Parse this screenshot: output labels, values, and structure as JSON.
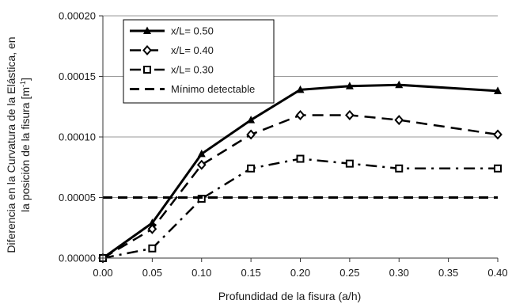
{
  "chart_data": {
    "type": "line",
    "title": "",
    "xlabel": "Profundidad de la fisura (a/h)",
    "ylabel_lines": [
      "Diferencia en la Curvatura de la Elástica, en",
      "la posición de la fisura [m"
    ],
    "ylabel_unit_sup": "-1",
    "ylabel_unit_close": "]",
    "x_ticks": [
      "0.00",
      "0.05",
      "0.10",
      "0.15",
      "0.20",
      "0.25",
      "0.30",
      "0.35",
      "0.40"
    ],
    "y_ticks": [
      "0.00000",
      "0.00005",
      "0.00010",
      "0.00015",
      "0.00020"
    ],
    "xlim": [
      0,
      0.4
    ],
    "ylim": [
      0,
      0.0002
    ],
    "grid": "horizontal",
    "legend_position": "top-left",
    "series": [
      {
        "name": "x/L= 0.50",
        "marker": "triangle",
        "line": "solid",
        "x": [
          0.0,
          0.05,
          0.1,
          0.15,
          0.2,
          0.25,
          0.3,
          0.4
        ],
        "values": [
          0.0,
          2.9e-05,
          8.6e-05,
          0.000114,
          0.000139,
          0.000142,
          0.000143,
          0.000138
        ]
      },
      {
        "name": "x/L= 0.40",
        "marker": "diamond",
        "line": "dashed",
        "x": [
          0.0,
          0.05,
          0.1,
          0.15,
          0.2,
          0.25,
          0.3,
          0.4
        ],
        "values": [
          0.0,
          2.4e-05,
          7.7e-05,
          0.000102,
          0.000118,
          0.000118,
          0.000114,
          0.000102
        ]
      },
      {
        "name": "x/L= 0.30",
        "marker": "square",
        "line": "dashdot",
        "x": [
          0.0,
          0.05,
          0.1,
          0.15,
          0.2,
          0.25,
          0.3,
          0.4
        ],
        "values": [
          0.0,
          8e-06,
          4.9e-05,
          7.4e-05,
          8.2e-05,
          7.8e-05,
          7.4e-05,
          7.4e-05
        ]
      },
      {
        "name": "Mínimo detectable",
        "marker": "none",
        "line": "dashed-thick",
        "x": [
          0.0,
          0.4
        ],
        "values": [
          5e-05,
          5e-05
        ]
      }
    ]
  }
}
